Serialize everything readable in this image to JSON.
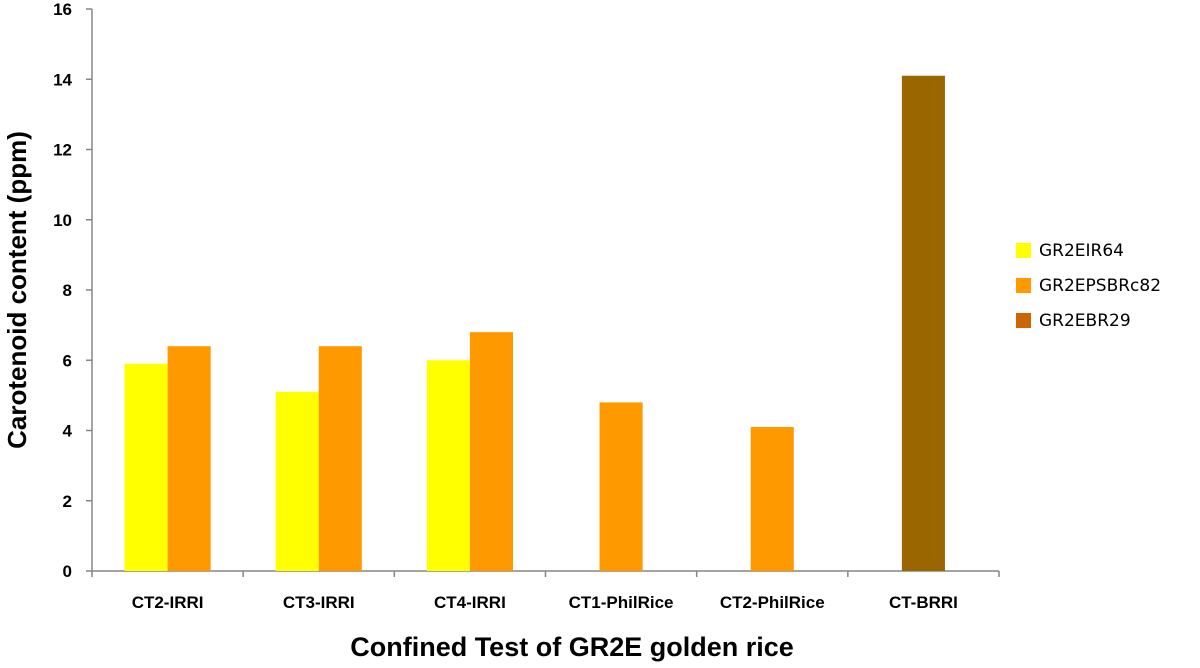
{
  "chart_data": {
    "type": "bar",
    "xlabel": "Confined Test of GR2E golden rice",
    "ylabel": "Carotenoid content (ppm)",
    "ylim": [
      0,
      16
    ],
    "yticks": [
      "0",
      "2",
      "4",
      "6",
      "8",
      "10",
      "12",
      "14",
      "16"
    ],
    "categories": [
      "CT2-IRRI",
      "CT3-IRRI",
      "CT4-IRRI",
      "CT1-PhilRice",
      "CT2-PhilRice",
      "CT-BRRI"
    ],
    "series": [
      {
        "name": "GR2EIR64",
        "color": "#FFFF00",
        "values": [
          5.9,
          5.1,
          6.0,
          null,
          null,
          null
        ]
      },
      {
        "name": "GR2EPSBRc82",
        "color": "#FF9900",
        "values": [
          6.4,
          6.4,
          6.8,
          4.8,
          4.1,
          null
        ]
      },
      {
        "name": "GR2EBR29",
        "color": "#996600",
        "values": [
          null,
          null,
          null,
          null,
          null,
          14.1
        ]
      }
    ],
    "legend_swatch_colors": [
      "#FFFF00",
      "#FF9900",
      "#CC6600"
    ],
    "grid": false,
    "legend_position": "right"
  }
}
